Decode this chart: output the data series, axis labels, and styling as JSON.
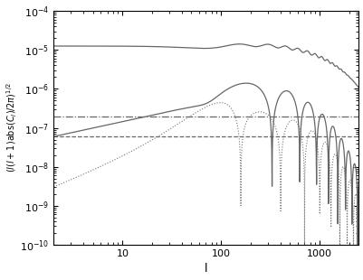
{
  "xlim": [
    2,
    2500
  ],
  "ylim": [
    1e-10,
    0.0001
  ],
  "xlabel": "l",
  "dash_dot_level": 2e-07,
  "dashed_level": 6e-08,
  "line_color": "#666666",
  "figsize": [
    4.02,
    3.1
  ],
  "dpi": 100
}
